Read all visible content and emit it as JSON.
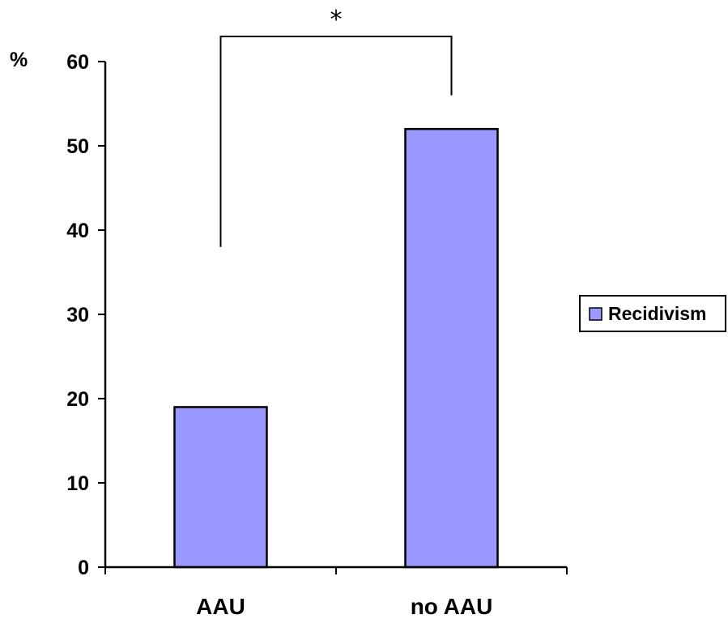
{
  "chart_data": {
    "type": "bar",
    "categories": [
      "AAU",
      "no AAU"
    ],
    "series": [
      {
        "name": "Recidivism",
        "values": [
          19,
          52
        ],
        "color": "#9999ff"
      }
    ],
    "ylabel": "%",
    "ylim": [
      0,
      60
    ],
    "yticks": [
      0,
      10,
      20,
      30,
      40,
      50,
      60
    ],
    "grid": false,
    "legend": "right",
    "annotation": {
      "text": "*",
      "between": [
        "AAU",
        "no AAU"
      ]
    }
  }
}
